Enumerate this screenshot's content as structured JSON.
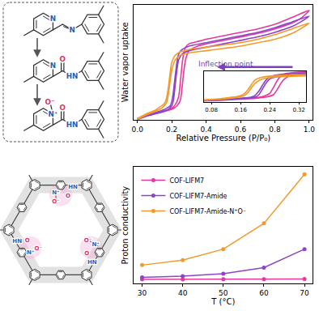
{
  "diagram": {
    "molecules": [
      {
        "ring_n": "N",
        "link_n": "N"
      },
      {
        "ring_n": "N",
        "carbonyl_o": "O",
        "link_n": "HN"
      },
      {
        "ring_n": "N⁺",
        "oxide": "O⁻",
        "carbonyl_o": "O",
        "link_n": "HN"
      }
    ],
    "framework": {
      "groups": [
        {
          "ring_n": "N⁺",
          "oxide": "O⁻",
          "carbonyl_o": "O",
          "link_n": "HN"
        },
        {
          "ring_n": "N⁺",
          "oxide": "O⁻",
          "carbonyl_o": "O",
          "link_n": "HN"
        },
        {
          "ring_n": "N⁺",
          "oxide": "O⁻",
          "carbonyl_o": "O",
          "link_n": "HN"
        }
      ]
    }
  },
  "chart_data": [
    {
      "type": "line",
      "x_label": "Relative Pressure (P/P₀)",
      "y_label": "Water vapor uptake",
      "annotation": "Inflection point",
      "xlim": [
        -0.02,
        1.02
      ],
      "xticks": [
        {
          "value": 0,
          "label": "0.0"
        },
        0.2,
        0.4,
        0.6,
        0.8,
        {
          "value": 1,
          "label": "1.0"
        }
      ],
      "ylim": [
        0,
        1
      ],
      "yticks": [],
      "tick_labels": "x",
      "grid": false,
      "line_style": "solid",
      "inset": {
        "xlim": [
          0.06,
          0.34
        ],
        "xticks": [
          0.08,
          0.16,
          0.24,
          0.32
        ],
        "ylim": [
          0,
          0.7
        ]
      },
      "series": [
        {
          "color": "#e6399b",
          "x": [
            0,
            0.05,
            0.1,
            0.15,
            0.2,
            0.23,
            0.25,
            0.26,
            0.27,
            0.28,
            0.3,
            0.35,
            0.4,
            0.5,
            0.6,
            0.7,
            0.8,
            0.9,
            0.95,
            1.0,
            0.9,
            0.8,
            0.7,
            0.6,
            0.5,
            0.4,
            0.35,
            0.3,
            0.28,
            0.27,
            0.26,
            0.25,
            0.24,
            0.22,
            0.2,
            0.15,
            0.1,
            0.05,
            0
          ],
          "values": [
            0,
            0.03,
            0.05,
            0.07,
            0.09,
            0.12,
            0.17,
            0.28,
            0.42,
            0.52,
            0.6,
            0.64,
            0.66,
            0.69,
            0.72,
            0.75,
            0.79,
            0.84,
            0.88,
            0.95,
            0.89,
            0.83,
            0.79,
            0.76,
            0.73,
            0.7,
            0.68,
            0.66,
            0.63,
            0.58,
            0.48,
            0.33,
            0.2,
            0.13,
            0.1,
            0.075,
            0.055,
            0.035,
            0.01
          ]
        },
        {
          "color": "#8e44c9",
          "x": [
            0,
            0.05,
            0.1,
            0.15,
            0.18,
            0.2,
            0.21,
            0.22,
            0.23,
            0.24,
            0.26,
            0.3,
            0.4,
            0.5,
            0.6,
            0.7,
            0.8,
            0.9,
            0.95,
            1.0,
            0.9,
            0.8,
            0.7,
            0.6,
            0.5,
            0.4,
            0.3,
            0.26,
            0.24,
            0.23,
            0.22,
            0.21,
            0.2,
            0.19,
            0.17,
            0.15,
            0.1,
            0.05,
            0
          ],
          "values": [
            0,
            0.03,
            0.05,
            0.07,
            0.09,
            0.12,
            0.17,
            0.3,
            0.43,
            0.52,
            0.57,
            0.6,
            0.63,
            0.66,
            0.69,
            0.72,
            0.76,
            0.81,
            0.85,
            0.9,
            0.85,
            0.8,
            0.76,
            0.73,
            0.7,
            0.67,
            0.64,
            0.61,
            0.57,
            0.5,
            0.38,
            0.25,
            0.16,
            0.12,
            0.1,
            0.085,
            0.06,
            0.035,
            0.01
          ]
        },
        {
          "color": "#f39a2b",
          "x": [
            0,
            0.05,
            0.1,
            0.13,
            0.15,
            0.17,
            0.18,
            0.19,
            0.2,
            0.22,
            0.25,
            0.3,
            0.4,
            0.5,
            0.6,
            0.7,
            0.8,
            0.9,
            0.95,
            1.0,
            0.9,
            0.8,
            0.7,
            0.6,
            0.5,
            0.4,
            0.3,
            0.25,
            0.22,
            0.2,
            0.19,
            0.18,
            0.17,
            0.16,
            0.15,
            0.13,
            0.1,
            0.05,
            0
          ],
          "values": [
            0,
            0.04,
            0.07,
            0.09,
            0.11,
            0.15,
            0.22,
            0.33,
            0.43,
            0.52,
            0.56,
            0.58,
            0.6,
            0.62,
            0.64,
            0.67,
            0.7,
            0.75,
            0.79,
            0.84,
            0.79,
            0.74,
            0.7,
            0.67,
            0.65,
            0.63,
            0.61,
            0.59,
            0.56,
            0.5,
            0.4,
            0.28,
            0.19,
            0.15,
            0.13,
            0.11,
            0.08,
            0.05,
            0.01
          ]
        }
      ]
    },
    {
      "type": "line",
      "x_label": "T (°C)",
      "y_label": "Proton conductivity",
      "x": [
        30,
        40,
        50,
        60,
        70
      ],
      "xlim": [
        28,
        72
      ],
      "xticks": [
        30,
        40,
        50,
        60,
        70
      ],
      "ylim": [
        -0.03,
        0.92
      ],
      "yticks": [],
      "tick_labels": "x",
      "grid": false,
      "legend": "upper left",
      "marker": "circle",
      "line_style": "solid",
      "series": [
        {
          "name": "COF-LIFM7",
          "color": "#e6399b",
          "values": [
            0.004,
            0.004,
            0.005,
            0.006,
            0.007
          ]
        },
        {
          "name": "COF-LIFM7-Amide",
          "color": "#8e44c9",
          "values": [
            0.02,
            0.03,
            0.05,
            0.1,
            0.25
          ]
        },
        {
          "name": "COF-LIFM7-Amide-N⁺O⁻",
          "color": "#f39a2b",
          "values": [
            0.12,
            0.16,
            0.25,
            0.46,
            0.86
          ]
        }
      ]
    }
  ]
}
